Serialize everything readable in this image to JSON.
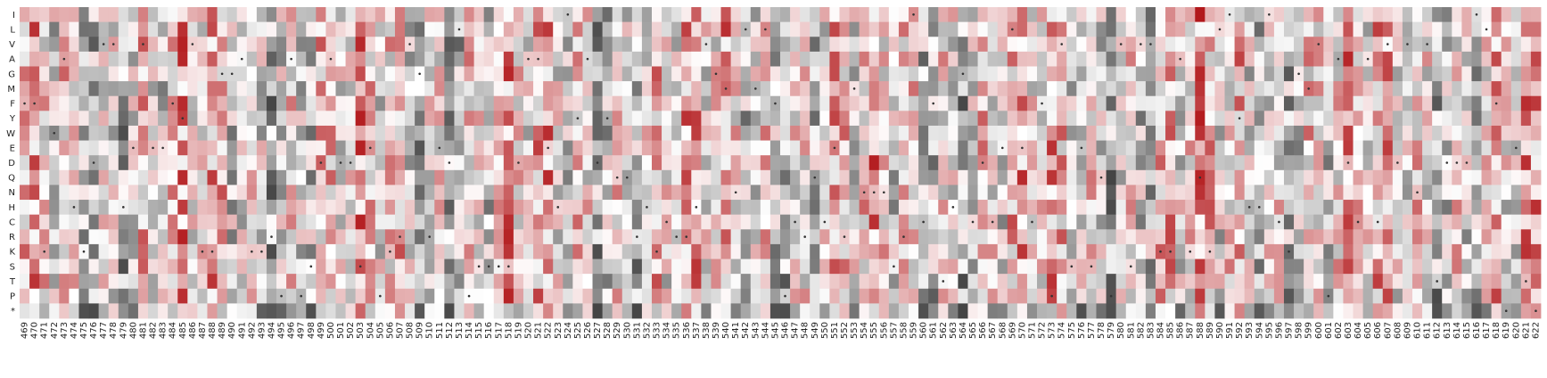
{
  "chart_data": {
    "type": "heatmap",
    "title": "",
    "xlabel": "",
    "ylabel": "",
    "grid": false,
    "legend": "none",
    "y_categories": [
      "I",
      "L",
      "V",
      "A",
      "G",
      "M",
      "F",
      "Y",
      "W",
      "E",
      "D",
      "Q",
      "N",
      "H",
      "C",
      "R",
      "K",
      "S",
      "T",
      "P",
      "*"
    ],
    "x_positions": [
      469,
      470,
      471,
      472,
      473,
      474,
      475,
      476,
      477,
      478,
      479,
      480,
      481,
      482,
      483,
      484,
      485,
      486,
      487,
      488,
      489,
      490,
      491,
      492,
      493,
      494,
      495,
      496,
      497,
      498,
      499,
      500,
      501,
      502,
      503,
      504,
      505,
      506,
      507,
      508,
      509,
      510,
      511,
      512,
      513,
      514,
      515,
      516,
      517,
      518,
      519,
      520,
      521,
      522,
      523,
      524,
      525,
      526,
      527,
      528,
      529,
      530,
      531,
      532,
      533,
      534,
      535,
      536,
      537,
      538,
      539,
      540,
      541,
      542,
      543,
      544,
      545,
      546,
      547,
      548,
      549,
      550,
      551,
      552,
      553,
      554,
      555,
      556,
      557,
      558,
      559,
      560,
      561,
      562,
      563,
      564,
      565,
      566,
      567,
      568,
      569,
      570,
      571,
      572,
      573,
      574,
      575,
      576,
      577,
      578,
      579,
      580,
      581,
      582,
      583,
      584,
      585,
      586,
      587,
      588,
      589,
      590,
      591,
      592,
      593,
      594,
      595,
      596,
      597,
      598,
      599,
      600,
      601,
      602,
      603,
      604,
      605,
      606,
      607,
      608,
      609,
      610,
      611,
      612,
      613,
      614,
      615,
      616,
      617,
      618,
      619,
      620,
      621,
      622
    ],
    "x_tick_labels": [
      "469",
      "470",
      "471",
      "472",
      "473",
      "474",
      "475",
      "476",
      "477",
      "478",
      "479",
      "480",
      "481",
      "482",
      "483",
      "484",
      "485",
      "486",
      "487",
      "488",
      "489",
      "490",
      "491",
      "492",
      "493",
      "494",
      "495",
      "496",
      "497",
      "498",
      "499",
      "500",
      "501",
      "502",
      "503",
      "504",
      "505",
      "506",
      "507",
      "508",
      "509",
      "510",
      "511",
      "512",
      "513",
      "514",
      "515",
      "516",
      "517",
      "518",
      "519",
      "520",
      "521",
      "522",
      "523",
      "524",
      "525",
      "526",
      "527",
      "528",
      "529",
      "530",
      "531",
      "532",
      "533",
      "534",
      "535",
      "536",
      "537",
      "538",
      "539",
      "540",
      "541",
      "542",
      "543",
      "544",
      "545",
      "546",
      "547",
      "548",
      "549",
      "550",
      "551",
      "552",
      "553",
      "554",
      "555",
      "556",
      "557",
      "558",
      "559",
      "560",
      "561",
      "562",
      "563",
      "564",
      "565",
      "566",
      "567",
      "568",
      "569",
      "570",
      "571",
      "572",
      "573",
      "574",
      "575",
      "576",
      "577",
      "578",
      "579",
      "580",
      "581",
      "582",
      "583",
      "584",
      "585",
      "586",
      "587",
      "588",
      "589",
      "590",
      "591",
      "592",
      "593",
      "594",
      "595",
      "596",
      "597",
      "598",
      "599",
      "600",
      "601",
      "602",
      "603",
      "604",
      "605",
      "606",
      "607",
      "608",
      "609",
      "610",
      "611",
      "612",
      "613",
      "614",
      "615",
      "616",
      "617",
      "618",
      "619",
      "620",
      "621",
      "622"
    ],
    "value_scale": "diverging: negative = grey, positive = red, 0 = white",
    "colors": {
      "negative": "#444444",
      "neutral": "#ffffff",
      "positive": "#b2181b",
      "wildtype_dot": "#333333"
    },
    "value_range": [
      -1,
      1
    ],
    "values_note": "cell values in [-1,1]",
    "values": [],
    "wildtype_markers": [
      [
        469,
        6
      ],
      [
        470,
        6
      ],
      [
        471,
        16
      ],
      [
        472,
        8
      ],
      [
        473,
        3
      ],
      [
        474,
        13
      ],
      [
        475,
        16
      ],
      [
        476,
        10
      ],
      [
        477,
        2
      ],
      [
        478,
        2
      ],
      [
        479,
        13
      ],
      [
        480,
        9
      ],
      [
        481,
        2
      ],
      [
        482,
        9
      ],
      [
        483,
        9
      ],
      [
        484,
        6
      ],
      [
        485,
        7
      ],
      [
        486,
        2
      ],
      [
        487,
        16
      ],
      [
        488,
        16
      ],
      [
        489,
        4
      ],
      [
        490,
        4
      ],
      [
        491,
        3
      ],
      [
        492,
        16
      ],
      [
        493,
        16
      ],
      [
        494,
        15
      ],
      [
        495,
        19
      ],
      [
        496,
        3
      ],
      [
        497,
        19
      ],
      [
        498,
        17
      ],
      [
        499,
        10
      ],
      [
        500,
        3
      ],
      [
        501,
        10
      ],
      [
        502,
        10
      ],
      [
        503,
        17
      ],
      [
        504,
        9
      ],
      [
        505,
        19
      ],
      [
        506,
        16
      ],
      [
        507,
        15
      ],
      [
        508,
        2
      ],
      [
        509,
        4
      ],
      [
        510,
        15
      ],
      [
        511,
        9
      ],
      [
        512,
        10
      ],
      [
        513,
        1
      ],
      [
        514,
        19
      ],
      [
        515,
        17
      ],
      [
        516,
        17
      ],
      [
        517,
        17
      ],
      [
        518,
        17
      ],
      [
        519,
        10
      ],
      [
        520,
        3
      ],
      [
        521,
        3
      ],
      [
        522,
        9
      ],
      [
        523,
        13
      ],
      [
        524,
        0
      ],
      [
        525,
        7
      ],
      [
        526,
        3
      ],
      [
        527,
        10
      ],
      [
        528,
        7
      ],
      [
        529,
        11
      ],
      [
        530,
        11
      ],
      [
        531,
        15
      ],
      [
        532,
        13
      ],
      [
        533,
        16
      ],
      [
        534,
        14
      ],
      [
        535,
        15
      ],
      [
        536,
        15
      ],
      [
        537,
        13
      ],
      [
        538,
        2
      ],
      [
        539,
        4
      ],
      [
        540,
        5
      ],
      [
        541,
        12
      ],
      [
        542,
        1
      ],
      [
        543,
        5
      ],
      [
        544,
        1
      ],
      [
        545,
        6
      ],
      [
        546,
        19
      ],
      [
        547,
        14
      ],
      [
        548,
        15
      ],
      [
        549,
        11
      ],
      [
        550,
        14
      ],
      [
        551,
        9
      ],
      [
        552,
        15
      ],
      [
        553,
        5
      ],
      [
        554,
        12
      ],
      [
        555,
        12
      ],
      [
        556,
        12
      ],
      [
        557,
        17
      ],
      [
        558,
        15
      ],
      [
        559,
        0
      ],
      [
        560,
        14
      ],
      [
        561,
        6
      ],
      [
        562,
        18
      ],
      [
        563,
        13
      ],
      [
        564,
        4
      ],
      [
        565,
        14
      ],
      [
        566,
        10
      ],
      [
        567,
        14
      ],
      [
        568,
        9
      ],
      [
        569,
        1
      ],
      [
        570,
        9
      ],
      [
        571,
        14
      ],
      [
        572,
        6
      ],
      [
        573,
        19
      ],
      [
        574,
        2
      ],
      [
        575,
        17
      ],
      [
        576,
        9
      ],
      [
        577,
        17
      ],
      [
        578,
        11
      ],
      [
        579,
        19
      ],
      [
        580,
        2
      ],
      [
        581,
        17
      ],
      [
        582,
        2
      ],
      [
        583,
        2
      ],
      [
        584,
        16
      ],
      [
        585,
        16
      ],
      [
        586,
        3
      ],
      [
        587,
        16
      ],
      [
        588,
        11
      ],
      [
        589,
        16
      ],
      [
        590,
        1
      ],
      [
        591,
        0
      ],
      [
        592,
        7
      ],
      [
        593,
        13
      ],
      [
        594,
        13
      ],
      [
        595,
        0
      ],
      [
        596,
        14
      ],
      [
        597,
        16
      ],
      [
        598,
        4
      ],
      [
        599,
        5
      ],
      [
        600,
        2
      ],
      [
        601,
        19
      ],
      [
        602,
        3
      ],
      [
        603,
        10
      ],
      [
        604,
        14
      ],
      [
        605,
        3
      ],
      [
        606,
        14
      ],
      [
        607,
        2
      ],
      [
        608,
        10
      ],
      [
        609,
        2
      ],
      [
        610,
        12
      ],
      [
        611,
        2
      ],
      [
        612,
        18
      ],
      [
        613,
        10
      ],
      [
        614,
        10
      ],
      [
        615,
        10
      ],
      [
        616,
        0
      ],
      [
        617,
        1
      ],
      [
        618,
        6
      ],
      [
        619,
        20
      ],
      [
        620,
        9
      ],
      [
        621,
        18
      ],
      [
        622,
        20
      ]
    ]
  }
}
